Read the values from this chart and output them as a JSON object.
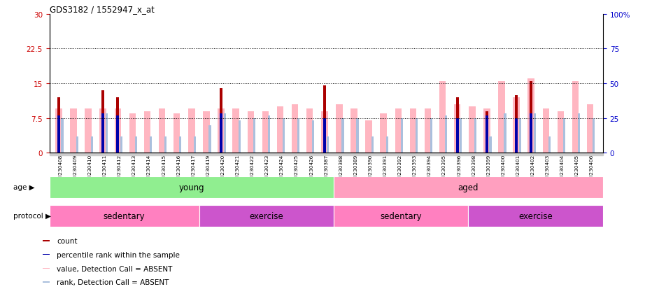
{
  "title": "GDS3182 / 1552947_x_at",
  "samples": [
    "GSM230408",
    "GSM230409",
    "GSM230410",
    "GSM230411",
    "GSM230412",
    "GSM230413",
    "GSM230414",
    "GSM230415",
    "GSM230416",
    "GSM230417",
    "GSM230419",
    "GSM230420",
    "GSM230421",
    "GSM230422",
    "GSM230423",
    "GSM230424",
    "GSM230425",
    "GSM230426",
    "GSM230387",
    "GSM230388",
    "GSM230389",
    "GSM230390",
    "GSM230391",
    "GSM230392",
    "GSM230393",
    "GSM230394",
    "GSM230395",
    "GSM230396",
    "GSM230398",
    "GSM230399",
    "GSM230400",
    "GSM230401",
    "GSM230402",
    "GSM230403",
    "GSM230404",
    "GSM230405",
    "GSM230406"
  ],
  "value_absent": [
    9.5,
    9.5,
    9.5,
    9.5,
    9.5,
    8.5,
    9.0,
    9.5,
    8.5,
    9.5,
    9.0,
    9.5,
    9.5,
    9.0,
    9.0,
    10.0,
    10.5,
    9.5,
    9.0,
    10.5,
    9.5,
    7.0,
    8.5,
    9.5,
    9.5,
    9.5,
    15.5,
    10.5,
    10.0,
    9.5,
    15.5,
    12.0,
    16.0,
    9.5,
    9.0,
    15.5,
    10.5
  ],
  "rank_absent": [
    7.5,
    3.5,
    3.5,
    8.5,
    3.5,
    3.5,
    3.5,
    3.5,
    3.5,
    3.5,
    6.0,
    8.5,
    7.0,
    7.5,
    8.0,
    7.5,
    7.5,
    7.0,
    3.5,
    7.5,
    7.5,
    3.5,
    3.5,
    7.5,
    7.5,
    7.5,
    8.0,
    7.5,
    7.5,
    3.5,
    8.5,
    7.5,
    8.5,
    3.5,
    7.5,
    8.5,
    7.5
  ],
  "count": [
    12.0,
    0,
    0,
    13.5,
    12.0,
    0,
    0,
    0,
    0,
    0,
    0,
    14.0,
    0,
    0,
    0,
    0,
    0,
    0,
    14.5,
    0,
    0,
    0,
    0,
    0,
    0,
    0,
    0,
    12.0,
    0,
    9.0,
    0,
    12.5,
    15.5,
    0,
    0,
    0,
    0
  ],
  "percentile": [
    8.0,
    0,
    0,
    8.5,
    8.0,
    0,
    0,
    0,
    0,
    0,
    0,
    8.5,
    0,
    0,
    0,
    0,
    0,
    0,
    7.5,
    0,
    0,
    0,
    0,
    0,
    0,
    0,
    0,
    7.5,
    0,
    8.0,
    0,
    7.5,
    8.5,
    0,
    0,
    0,
    0
  ],
  "left_ylim": [
    0,
    30
  ],
  "right_ylim": [
    0,
    100
  ],
  "left_yticks": [
    0,
    7.5,
    15,
    22.5,
    30
  ],
  "right_yticks": [
    0,
    25,
    50,
    75,
    100
  ],
  "left_ytick_labels": [
    "0",
    "7.5",
    "15",
    "22.5",
    "30"
  ],
  "right_ytick_labels": [
    "0",
    "25",
    "50",
    "75",
    "100%"
  ],
  "hlines": [
    7.5,
    15,
    22.5
  ],
  "age_groups": [
    {
      "label": "young",
      "start": 0,
      "end": 19,
      "color": "#90EE90"
    },
    {
      "label": "aged",
      "start": 19,
      "end": 37,
      "color": "#FF9FBF"
    }
  ],
  "protocol_groups": [
    {
      "label": "sedentary",
      "start": 0,
      "end": 10,
      "color": "#FF80C0"
    },
    {
      "label": "exercise",
      "start": 10,
      "end": 19,
      "color": "#CC66CC"
    },
    {
      "label": "sedentary",
      "start": 19,
      "end": 28,
      "color": "#FF80C0"
    },
    {
      "label": "exercise",
      "start": 28,
      "end": 37,
      "color": "#CC66CC"
    }
  ],
  "value_absent_color": "#FFB6C1",
  "rank_absent_color": "#AABFDD",
  "count_color": "#AA0000",
  "percentile_color": "#0000AA",
  "left_tick_color": "#CC0000",
  "right_tick_color": "#0000CC"
}
